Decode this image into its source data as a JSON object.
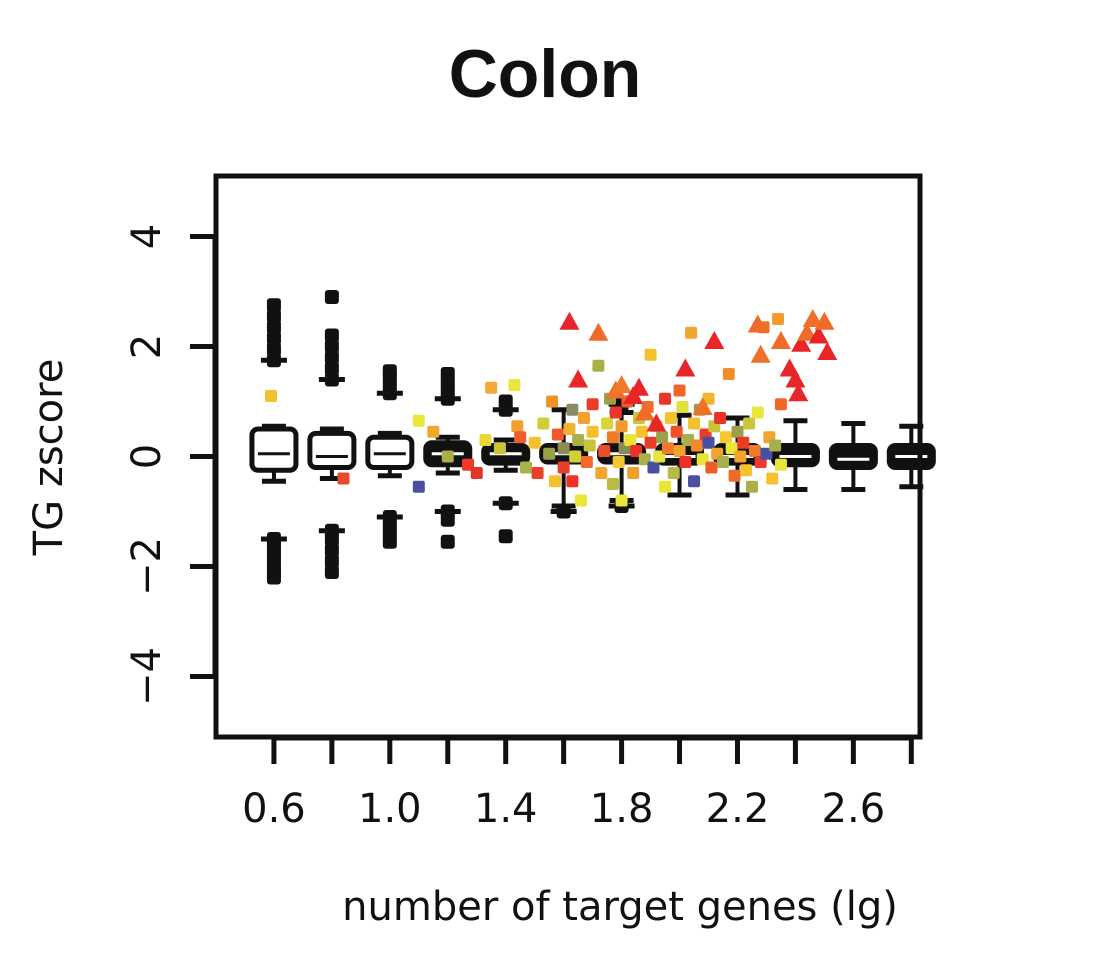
{
  "chart_data": {
    "type": "scatter",
    "title": "Colon",
    "xlabel": "number of target genes (lg)",
    "ylabel": "TG zscore",
    "xlim": [
      0.4,
      2.83
    ],
    "ylim": [
      -5.1,
      5.1
    ],
    "x_ticks": [
      0.6,
      0.8,
      1.0,
      1.2,
      1.4,
      1.6,
      1.8,
      2.0,
      2.2,
      2.4,
      2.6,
      2.8
    ],
    "x_tick_labels": [
      "0.6",
      "",
      "1.0",
      "",
      "1.4",
      "",
      "1.8",
      "",
      "2.2",
      "",
      "2.6",
      ""
    ],
    "y_ticks": [
      -4,
      -2,
      0,
      2,
      4
    ],
    "y_tick_labels": [
      "−4",
      "−2",
      "0",
      "2",
      "4"
    ],
    "grid": false,
    "legend": "none",
    "boxplots": [
      {
        "x": 0.6,
        "q1": -0.25,
        "median": 0.05,
        "q3": 0.5,
        "lo": -0.45,
        "hi": 0.55,
        "fill": "#ffffff",
        "out_lo": [
          -1.5,
          -1.65,
          -1.8,
          -1.95,
          -2.1,
          -2.2
        ],
        "out_hi": [
          1.75,
          1.95,
          2.15,
          2.35,
          2.55,
          2.75
        ]
      },
      {
        "x": 0.8,
        "q1": -0.2,
        "median": 0.0,
        "q3": 0.42,
        "lo": -0.4,
        "hi": 0.5,
        "fill": "#ffffff",
        "out_lo": [
          -1.35,
          -1.5,
          -1.7,
          -1.9,
          -2.1
        ],
        "out_hi": [
          1.4,
          1.6,
          1.8,
          2.0,
          2.2,
          2.9
        ]
      },
      {
        "x": 1.0,
        "q1": -0.2,
        "median": 0.05,
        "q3": 0.35,
        "lo": -0.35,
        "hi": 0.42,
        "fill": "#ffffff",
        "out_lo": [
          -1.1,
          -1.25,
          -1.4,
          -1.55
        ],
        "out_hi": [
          1.15,
          1.3,
          1.45,
          1.55
        ]
      },
      {
        "x": 1.2,
        "q1": -0.15,
        "median": 0.05,
        "q3": 0.25,
        "lo": -0.3,
        "hi": 0.35,
        "fill": "#111111",
        "out_lo": [
          -1.0,
          -1.15,
          -1.55
        ],
        "out_hi": [
          1.05,
          1.2,
          1.35,
          1.5
        ]
      },
      {
        "x": 1.4,
        "q1": -0.12,
        "median": 0.05,
        "q3": 0.2,
        "lo": -0.25,
        "hi": 0.3,
        "fill": "#111111",
        "out_lo": [
          -0.85,
          -1.45
        ],
        "out_hi": [
          0.85,
          1.0
        ]
      },
      {
        "x": 1.6,
        "q1": -0.1,
        "median": 0.05,
        "q3": 0.2,
        "lo": -0.9,
        "hi": 0.85,
        "fill": "#111111",
        "out_lo": [
          -1.0
        ],
        "out_hi": []
      },
      {
        "x": 1.8,
        "q1": -0.1,
        "median": 0.05,
        "q3": 0.2,
        "lo": -0.8,
        "hi": 0.8,
        "fill": "#111111",
        "out_lo": [
          -0.9
        ],
        "out_hi": [
          0.95
        ]
      },
      {
        "x": 2.0,
        "q1": -0.12,
        "median": 0.0,
        "q3": 0.2,
        "lo": -0.7,
        "hi": 0.75,
        "fill": "#111111",
        "out_lo": [],
        "out_hi": []
      },
      {
        "x": 2.2,
        "q1": -0.12,
        "median": 0.0,
        "q3": 0.2,
        "lo": -0.7,
        "hi": 0.7,
        "fill": "#111111",
        "out_lo": [],
        "out_hi": []
      },
      {
        "x": 2.4,
        "q1": -0.15,
        "median": 0.0,
        "q3": 0.2,
        "lo": -0.6,
        "hi": 0.65,
        "fill": "#111111",
        "out_lo": [],
        "out_hi": []
      },
      {
        "x": 2.6,
        "q1": -0.2,
        "median": -0.05,
        "q3": 0.2,
        "lo": -0.6,
        "hi": 0.6,
        "fill": "#111111",
        "out_lo": [],
        "out_hi": []
      },
      {
        "x": 2.8,
        "q1": -0.2,
        "median": 0.0,
        "q3": 0.2,
        "lo": -0.55,
        "hi": 0.55,
        "fill": "#111111",
        "out_lo": [],
        "out_hi": []
      }
    ],
    "points": [
      {
        "x": 0.59,
        "y": 1.1,
        "c": "#f2c12e",
        "m": "sq"
      },
      {
        "x": 0.84,
        "y": -0.4,
        "c": "#e84b2a",
        "m": "sq"
      },
      {
        "x": 1.1,
        "y": -0.55,
        "c": "#4a4fa0",
        "m": "sq"
      },
      {
        "x": 1.1,
        "y": 0.65,
        "c": "#e9e83a",
        "m": "sq"
      },
      {
        "x": 1.15,
        "y": 0.45,
        "c": "#f0a82a",
        "m": "sq"
      },
      {
        "x": 1.2,
        "y": 0.0,
        "c": "#a9b04a",
        "m": "sq"
      },
      {
        "x": 1.27,
        "y": -0.15,
        "c": "#ef3a2a",
        "m": "sq"
      },
      {
        "x": 1.3,
        "y": -0.3,
        "c": "#e2332a",
        "m": "sq"
      },
      {
        "x": 1.35,
        "y": 1.25,
        "c": "#f2a93b",
        "m": "sq"
      },
      {
        "x": 1.33,
        "y": 0.3,
        "c": "#e8d73a",
        "m": "sq"
      },
      {
        "x": 1.38,
        "y": 0.15,
        "c": "#cbc33a",
        "m": "sq"
      },
      {
        "x": 1.43,
        "y": 1.3,
        "c": "#eae63a",
        "m": "sq"
      },
      {
        "x": 1.44,
        "y": 0.55,
        "c": "#f1a02d",
        "m": "sq"
      },
      {
        "x": 1.45,
        "y": 0.35,
        "c": "#ef5d2a",
        "m": "sq"
      },
      {
        "x": 1.47,
        "y": -0.2,
        "c": "#a9b24a",
        "m": "sq"
      },
      {
        "x": 1.5,
        "y": 0.25,
        "c": "#f5c02f",
        "m": "sq"
      },
      {
        "x": 1.51,
        "y": -0.3,
        "c": "#ea3f28",
        "m": "sq"
      },
      {
        "x": 1.53,
        "y": 0.6,
        "c": "#cfcf3a",
        "m": "sq"
      },
      {
        "x": 1.55,
        "y": 0.05,
        "c": "#9aa04a",
        "m": "sq"
      },
      {
        "x": 1.56,
        "y": 1.0,
        "c": "#f0922a",
        "m": "sq"
      },
      {
        "x": 1.57,
        "y": -0.45,
        "c": "#f3c12e",
        "m": "sq"
      },
      {
        "x": 1.58,
        "y": 0.4,
        "c": "#f05a28",
        "m": "sq"
      },
      {
        "x": 1.6,
        "y": 0.15,
        "c": "#8b8b55",
        "m": "sq"
      },
      {
        "x": 1.6,
        "y": -0.2,
        "c": "#e83f2a",
        "m": "sq"
      },
      {
        "x": 1.62,
        "y": 0.5,
        "c": "#f2b22e",
        "m": "sq"
      },
      {
        "x": 1.63,
        "y": 0.85,
        "c": "#8b8b6a",
        "m": "sq"
      },
      {
        "x": 1.63,
        "y": -0.45,
        "c": "#ee2f2a",
        "m": "sq"
      },
      {
        "x": 1.64,
        "y": 0.0,
        "c": "#d1cf3a",
        "m": "sq"
      },
      {
        "x": 1.65,
        "y": 0.3,
        "c": "#a8b04a",
        "m": "sq"
      },
      {
        "x": 1.66,
        "y": -0.8,
        "c": "#e9e63a",
        "m": "sq"
      },
      {
        "x": 1.67,
        "y": 0.7,
        "c": "#f3a12d",
        "m": "sq"
      },
      {
        "x": 1.68,
        "y": -0.1,
        "c": "#f06a28",
        "m": "sq"
      },
      {
        "x": 1.69,
        "y": 0.2,
        "c": "#c5c63b",
        "m": "sq"
      },
      {
        "x": 1.7,
        "y": 0.95,
        "c": "#ec3b29",
        "m": "sq"
      },
      {
        "x": 1.7,
        "y": 0.45,
        "c": "#f3c12f",
        "m": "sq"
      },
      {
        "x": 1.72,
        "y": 1.65,
        "c": "#a9b04a",
        "m": "sq"
      },
      {
        "x": 1.73,
        "y": -0.3,
        "c": "#f3a62d",
        "m": "sq"
      },
      {
        "x": 1.74,
        "y": 0.1,
        "c": "#eb4c29",
        "m": "sq"
      },
      {
        "x": 1.75,
        "y": 0.6,
        "c": "#d8d53a",
        "m": "sq"
      },
      {
        "x": 1.76,
        "y": 1.05,
        "c": "#9aa24a",
        "m": "sq"
      },
      {
        "x": 1.77,
        "y": -0.5,
        "c": "#b8bb44",
        "m": "sq"
      },
      {
        "x": 1.77,
        "y": 0.35,
        "c": "#ef7a2a",
        "m": "sq"
      },
      {
        "x": 1.78,
        "y": 0.8,
        "c": "#ec3529",
        "m": "sq"
      },
      {
        "x": 1.79,
        "y": -0.1,
        "c": "#f4c62f",
        "m": "sq"
      },
      {
        "x": 1.8,
        "y": 0.55,
        "c": "#f29a2b",
        "m": "sq"
      },
      {
        "x": 1.8,
        "y": -0.8,
        "c": "#e9e53a",
        "m": "sq"
      },
      {
        "x": 1.81,
        "y": 0.15,
        "c": "#8b8b55",
        "m": "sq"
      },
      {
        "x": 1.82,
        "y": 1.0,
        "c": "#ef5a28",
        "m": "sq"
      },
      {
        "x": 1.83,
        "y": 0.3,
        "c": "#e9e33a",
        "m": "sq"
      },
      {
        "x": 1.84,
        "y": -0.3,
        "c": "#f0a02d",
        "m": "sq"
      },
      {
        "x": 1.85,
        "y": 0.1,
        "c": "#ec2f29",
        "m": "sq"
      },
      {
        "x": 1.86,
        "y": 0.7,
        "c": "#c8c73b",
        "m": "sq"
      },
      {
        "x": 1.87,
        "y": 0.45,
        "c": "#f3c22f",
        "m": "sq"
      },
      {
        "x": 1.88,
        "y": -0.05,
        "c": "#a9b04a",
        "m": "sq"
      },
      {
        "x": 1.89,
        "y": 0.9,
        "c": "#ef7128",
        "m": "sq"
      },
      {
        "x": 1.9,
        "y": 0.25,
        "c": "#ee3a2a",
        "m": "sq"
      },
      {
        "x": 1.9,
        "y": 1.85,
        "c": "#f3c12e",
        "m": "sq"
      },
      {
        "x": 1.91,
        "y": -0.2,
        "c": "#4a4fa0",
        "m": "sq"
      },
      {
        "x": 1.92,
        "y": 0.55,
        "c": "#f2a52d",
        "m": "sq"
      },
      {
        "x": 1.93,
        "y": 0.0,
        "c": "#e8e53a",
        "m": "sq"
      },
      {
        "x": 1.94,
        "y": 0.35,
        "c": "#9aa04a",
        "m": "sq"
      },
      {
        "x": 1.95,
        "y": 1.05,
        "c": "#ec3529",
        "m": "sq"
      },
      {
        "x": 1.95,
        "y": -0.55,
        "c": "#e9e63a",
        "m": "sq"
      },
      {
        "x": 1.96,
        "y": 0.15,
        "c": "#f17a2a",
        "m": "sq"
      },
      {
        "x": 1.97,
        "y": 0.7,
        "c": "#f4c32f",
        "m": "sq"
      },
      {
        "x": 1.98,
        "y": -0.3,
        "c": "#b7ba44",
        "m": "sq"
      },
      {
        "x": 1.99,
        "y": 0.45,
        "c": "#ef5228",
        "m": "sq"
      },
      {
        "x": 2.0,
        "y": 0.1,
        "c": "#f2a12d",
        "m": "sq"
      },
      {
        "x": 2.0,
        "y": 1.2,
        "c": "#f0662a",
        "m": "sq"
      },
      {
        "x": 2.01,
        "y": 0.9,
        "c": "#e3e03a",
        "m": "sq"
      },
      {
        "x": 2.02,
        "y": -0.1,
        "c": "#ed3129",
        "m": "sq"
      },
      {
        "x": 2.03,
        "y": 0.3,
        "c": "#a9b04a",
        "m": "sq"
      },
      {
        "x": 2.04,
        "y": 2.25,
        "c": "#f2a52d",
        "m": "sq"
      },
      {
        "x": 2.05,
        "y": 0.6,
        "c": "#f4c02f",
        "m": "sq"
      },
      {
        "x": 2.05,
        "y": -0.45,
        "c": "#4a4fa0",
        "m": "sq"
      },
      {
        "x": 2.06,
        "y": 0.2,
        "c": "#f08a2a",
        "m": "sq"
      },
      {
        "x": 2.07,
        "y": 0.85,
        "c": "#9aa04a",
        "m": "sq"
      },
      {
        "x": 2.08,
        "y": -0.05,
        "c": "#e9e43a",
        "m": "sq"
      },
      {
        "x": 2.09,
        "y": 0.4,
        "c": "#ec3a29",
        "m": "sq"
      },
      {
        "x": 2.1,
        "y": 0.25,
        "c": "#4a4fa0",
        "m": "sq"
      },
      {
        "x": 2.1,
        "y": 1.05,
        "c": "#f2b42e",
        "m": "sq"
      },
      {
        "x": 2.11,
        "y": -0.2,
        "c": "#f05c28",
        "m": "sq"
      },
      {
        "x": 2.12,
        "y": 0.55,
        "c": "#c5c63b",
        "m": "sq"
      },
      {
        "x": 2.13,
        "y": 0.05,
        "c": "#f3a22d",
        "m": "sq"
      },
      {
        "x": 2.14,
        "y": 0.7,
        "c": "#ee302a",
        "m": "sq"
      },
      {
        "x": 2.15,
        "y": -0.1,
        "c": "#a8af4a",
        "m": "sq"
      },
      {
        "x": 2.16,
        "y": 0.35,
        "c": "#f4c62f",
        "m": "sq"
      },
      {
        "x": 2.17,
        "y": 1.5,
        "c": "#f28e2a",
        "m": "sq"
      },
      {
        "x": 2.18,
        "y": 0.15,
        "c": "#eae63a",
        "m": "sq"
      },
      {
        "x": 2.19,
        "y": -0.35,
        "c": "#ef6a28",
        "m": "sq"
      },
      {
        "x": 2.2,
        "y": 0.45,
        "c": "#9aa04a",
        "m": "sq"
      },
      {
        "x": 2.21,
        "y": 0.0,
        "c": "#f3a42d",
        "m": "sq"
      },
      {
        "x": 2.22,
        "y": 0.25,
        "c": "#ec3b29",
        "m": "sq"
      },
      {
        "x": 2.23,
        "y": -0.25,
        "c": "#f4c22f",
        "m": "sq"
      },
      {
        "x": 2.24,
        "y": 0.6,
        "c": "#c8c63b",
        "m": "sq"
      },
      {
        "x": 2.25,
        "y": -0.55,
        "c": "#a9b04a",
        "m": "sq"
      },
      {
        "x": 2.26,
        "y": 0.1,
        "c": "#f07a2a",
        "m": "sq"
      },
      {
        "x": 2.27,
        "y": 0.8,
        "c": "#e9e53a",
        "m": "sq"
      },
      {
        "x": 2.28,
        "y": -0.1,
        "c": "#ee3829",
        "m": "sq"
      },
      {
        "x": 2.29,
        "y": 2.35,
        "c": "#f07028",
        "m": "sq"
      },
      {
        "x": 2.3,
        "y": 0.05,
        "c": "#4a4fa0",
        "m": "sq"
      },
      {
        "x": 2.31,
        "y": 0.35,
        "c": "#f2a52d",
        "m": "sq"
      },
      {
        "x": 2.32,
        "y": -0.4,
        "c": "#f4c12f",
        "m": "sq"
      },
      {
        "x": 2.33,
        "y": 0.2,
        "c": "#a8ae4a",
        "m": "sq"
      },
      {
        "x": 2.34,
        "y": 2.5,
        "c": "#f29a2b",
        "m": "sq"
      },
      {
        "x": 2.35,
        "y": 0.95,
        "c": "#ef6628",
        "m": "sq"
      },
      {
        "x": 2.35,
        "y": -0.15,
        "c": "#e8e43a",
        "m": "sq"
      },
      {
        "x": 1.62,
        "y": 2.45,
        "c": "#e8262a",
        "m": "tri"
      },
      {
        "x": 1.65,
        "y": 1.4,
        "c": "#e8262a",
        "m": "tri"
      },
      {
        "x": 1.72,
        "y": 2.25,
        "c": "#f06a28",
        "m": "tri"
      },
      {
        "x": 1.78,
        "y": 1.2,
        "c": "#f07028",
        "m": "tri"
      },
      {
        "x": 1.8,
        "y": 1.3,
        "c": "#f07a2a",
        "m": "tri"
      },
      {
        "x": 1.84,
        "y": 1.1,
        "c": "#e8262a",
        "m": "tri"
      },
      {
        "x": 1.86,
        "y": 1.25,
        "c": "#e8262a",
        "m": "tri"
      },
      {
        "x": 1.88,
        "y": 0.8,
        "c": "#f06a28",
        "m": "tri"
      },
      {
        "x": 1.92,
        "y": 0.6,
        "c": "#e8262a",
        "m": "tri"
      },
      {
        "x": 2.02,
        "y": 1.6,
        "c": "#e8262a",
        "m": "tri"
      },
      {
        "x": 2.08,
        "y": 0.9,
        "c": "#f07028",
        "m": "tri"
      },
      {
        "x": 2.12,
        "y": 2.1,
        "c": "#e8262a",
        "m": "tri"
      },
      {
        "x": 2.27,
        "y": 2.4,
        "c": "#f06a28",
        "m": "tri"
      },
      {
        "x": 2.28,
        "y": 1.85,
        "c": "#f07028",
        "m": "tri"
      },
      {
        "x": 2.35,
        "y": 2.1,
        "c": "#f06a28",
        "m": "tri"
      },
      {
        "x": 2.38,
        "y": 1.6,
        "c": "#e8262a",
        "m": "tri"
      },
      {
        "x": 2.4,
        "y": 1.4,
        "c": "#e8262a",
        "m": "tri"
      },
      {
        "x": 2.41,
        "y": 1.15,
        "c": "#e8262a",
        "m": "tri"
      },
      {
        "x": 2.42,
        "y": 2.05,
        "c": "#e8262a",
        "m": "tri"
      },
      {
        "x": 2.44,
        "y": 2.25,
        "c": "#f06a28",
        "m": "tri"
      },
      {
        "x": 2.46,
        "y": 2.5,
        "c": "#f07028",
        "m": "tri"
      },
      {
        "x": 2.48,
        "y": 2.2,
        "c": "#e8262a",
        "m": "tri"
      },
      {
        "x": 2.5,
        "y": 2.45,
        "c": "#f06a28",
        "m": "tri"
      },
      {
        "x": 2.51,
        "y": 1.9,
        "c": "#e8262a",
        "m": "tri"
      }
    ]
  }
}
